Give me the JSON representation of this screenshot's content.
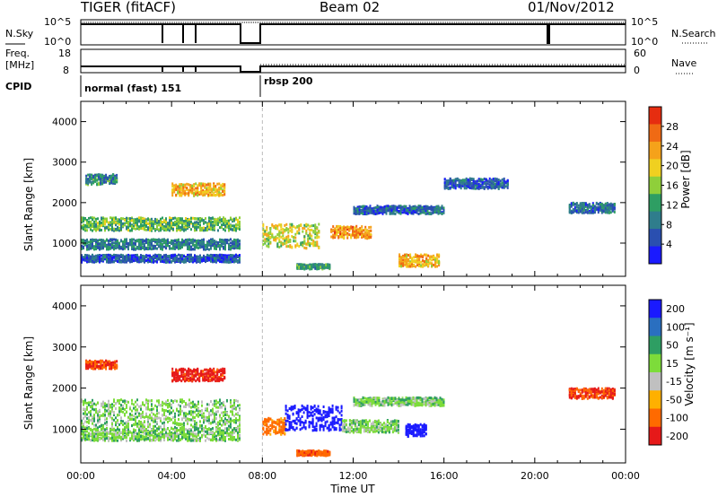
{
  "header": {
    "radar": "TIGER (fitACF)",
    "beam": "Beam 02",
    "date": "01/Nov/2012"
  },
  "params": {
    "nsky_label": "N.Sky",
    "nsky_ticks": [
      "10^5",
      "10^0"
    ],
    "freq_label_1": "Freq.",
    "freq_label_2": "[MHz]",
    "freq_ticks": [
      "18",
      "8"
    ],
    "cpid_label": "CPID",
    "nsearch_label": "N.Search",
    "nsearch_ticks": [
      "10^5",
      "10^0"
    ],
    "nave_label": "Nave",
    "nave_ticks": [
      "60",
      "0"
    ],
    "cpid_modes": [
      "normal (fast) 151",
      "rbsp 200"
    ]
  },
  "colors": {
    "power": [
      "#1a1aff",
      "#2a4fb0",
      "#2f7d8c",
      "#2e9e63",
      "#8fcf3a",
      "#f0d020",
      "#f5a21a",
      "#f06a14",
      "#e62d10"
    ],
    "velocity": [
      "#e61919",
      "#ff6a00",
      "#ffb000",
      "#c0c0c0",
      "#7ddc3a",
      "#2e9e63",
      "#2a6fc0",
      "#1a1aff"
    ],
    "velocity_ground": "#c0c0c0"
  },
  "chart_data": [
    {
      "type": "heatmap",
      "panel": "power",
      "xlabel": "",
      "ylabel": "Slant Range [km]",
      "xlim": [
        0,
        24
      ],
      "ylim": [
        180,
        4500
      ],
      "yticks": [
        "1000",
        "2000",
        "3000",
        "4000"
      ],
      "colorbar": {
        "label": "Power [dB]",
        "ticks": [
          "4",
          "8",
          "12",
          "16",
          "20",
          "24",
          "28"
        ],
        "range": [
          0,
          32
        ]
      },
      "echo_regions": [
        {
          "t_start": 0.0,
          "t_end": 7.0,
          "r_center": 1500,
          "r_width": 320,
          "value": 14
        },
        {
          "t_start": 0.0,
          "t_end": 7.0,
          "r_center": 1000,
          "r_width": 250,
          "value": 9
        },
        {
          "t_start": 0.0,
          "t_end": 7.0,
          "r_center": 650,
          "r_width": 180,
          "value": 6
        },
        {
          "t_start": 0.2,
          "t_end": 1.6,
          "r_center": 2600,
          "r_width": 250,
          "value": 10
        },
        {
          "t_start": 4.0,
          "t_end": 6.3,
          "r_center": 2350,
          "r_width": 300,
          "value": 22
        },
        {
          "t_start": 8.0,
          "t_end": 10.5,
          "r_center": 1200,
          "r_width": 600,
          "value": 18
        },
        {
          "t_start": 11.0,
          "t_end": 12.8,
          "r_center": 1300,
          "r_width": 300,
          "value": 24
        },
        {
          "t_start": 12.0,
          "t_end": 16.0,
          "r_center": 1850,
          "r_width": 200,
          "value": 7
        },
        {
          "t_start": 16.0,
          "t_end": 18.8,
          "r_center": 2500,
          "r_width": 250,
          "value": 6
        },
        {
          "t_start": 14.0,
          "t_end": 15.8,
          "r_center": 600,
          "r_width": 300,
          "value": 22
        },
        {
          "t_start": 9.5,
          "t_end": 11.0,
          "r_center": 450,
          "r_width": 120,
          "value": 12
        },
        {
          "t_start": 21.5,
          "t_end": 23.5,
          "r_center": 1900,
          "r_width": 250,
          "value": 8
        }
      ]
    },
    {
      "type": "heatmap",
      "panel": "velocity",
      "xlabel": "Time UT",
      "ylabel": "Slant Range [km]",
      "xlim": [
        0,
        24
      ],
      "ylim": [
        180,
        4500
      ],
      "xticks": [
        "00:00",
        "04:00",
        "08:00",
        "12:00",
        "16:00",
        "20:00",
        "00:00"
      ],
      "yticks": [
        "1000",
        "2000",
        "3000",
        "4000"
      ],
      "colorbar": {
        "label": "Velocity [m s⁻¹]",
        "ticks": [
          "200",
          "100",
          "50",
          "15",
          "-15",
          "-50",
          "-100",
          "-200"
        ],
        "range": [
          -250,
          250
        ]
      },
      "echo_regions": [
        {
          "t_start": 0.0,
          "t_end": 7.0,
          "r_center": 1400,
          "r_width": 700,
          "value": 0
        },
        {
          "t_start": 0.0,
          "t_end": 7.0,
          "r_center": 900,
          "r_width": 300,
          "value": 0
        },
        {
          "t_start": 0.2,
          "t_end": 1.6,
          "r_center": 2600,
          "r_width": 200,
          "value": -200
        },
        {
          "t_start": 4.0,
          "t_end": 6.3,
          "r_center": 2350,
          "r_width": 300,
          "value": -220
        },
        {
          "t_start": 8.0,
          "t_end": 9.0,
          "r_center": 1100,
          "r_width": 400,
          "value": -120
        },
        {
          "t_start": 9.0,
          "t_end": 11.5,
          "r_center": 1300,
          "r_width": 600,
          "value": 200
        },
        {
          "t_start": 11.5,
          "t_end": 14.0,
          "r_center": 1100,
          "r_width": 300,
          "value": 0
        },
        {
          "t_start": 14.3,
          "t_end": 15.2,
          "r_center": 1000,
          "r_width": 300,
          "value": 200
        },
        {
          "t_start": 12.0,
          "t_end": 16.0,
          "r_center": 1700,
          "r_width": 200,
          "value": 0
        },
        {
          "t_start": 9.5,
          "t_end": 11.0,
          "r_center": 450,
          "r_width": 120,
          "value": -180
        },
        {
          "t_start": 21.5,
          "t_end": 23.5,
          "r_center": 1900,
          "r_width": 250,
          "value": -200
        }
      ]
    }
  ]
}
